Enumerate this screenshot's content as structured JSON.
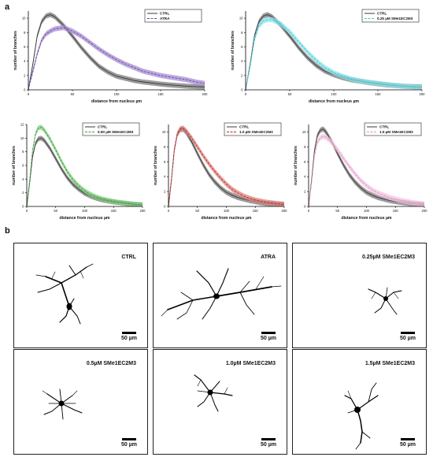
{
  "panel_a_label": "a",
  "panel_b_label": "b",
  "chart_data": [
    {
      "type": "line",
      "xlabel": "distance from nucleus µm",
      "ylabel": "number of branches",
      "xlim": [
        0,
        200
      ],
      "ylim": [
        0,
        11
      ],
      "xticks": [
        0,
        50,
        100,
        150,
        200
      ],
      "yticks": [
        0,
        2,
        4,
        6,
        8,
        10
      ],
      "legend_position": "top-right",
      "x": [
        0,
        5,
        10,
        15,
        20,
        25,
        30,
        40,
        50,
        60,
        70,
        80,
        90,
        100,
        110,
        120,
        130,
        140,
        150,
        160,
        170,
        180,
        190,
        200
      ],
      "series": [
        {
          "name": "CTRL",
          "color": "#3a3a3a",
          "band": "#7a7a7a",
          "values": [
            0,
            3.5,
            7.5,
            9.5,
            10.3,
            10.5,
            10.2,
            9.0,
            7.5,
            5.9,
            4.5,
            3.3,
            2.5,
            1.9,
            1.6,
            1.3,
            1.1,
            0.95,
            0.8,
            0.7,
            0.6,
            0.5,
            0.45,
            0.4
          ]
        },
        {
          "name": "ATRA",
          "color": "#6a4c93",
          "band": "#a58bd6",
          "values": [
            0,
            2.5,
            5.0,
            6.9,
            7.8,
            8.2,
            8.5,
            8.7,
            8.2,
            7.5,
            6.6,
            5.7,
            4.9,
            4.2,
            3.6,
            3.1,
            2.6,
            2.3,
            2.0,
            1.8,
            1.6,
            1.4,
            1.1,
            0.9
          ]
        }
      ]
    },
    {
      "type": "line",
      "xlabel": "distance from nucleus µm",
      "ylabel": "number of branches",
      "xlim": [
        0,
        200
      ],
      "ylim": [
        0,
        11
      ],
      "xticks": [
        0,
        50,
        100,
        150,
        200
      ],
      "yticks": [
        0,
        2,
        4,
        6,
        8,
        10
      ],
      "legend_position": "top-right",
      "x": [
        0,
        5,
        10,
        15,
        20,
        25,
        30,
        40,
        50,
        60,
        70,
        80,
        90,
        100,
        110,
        120,
        130,
        140,
        150,
        160,
        170,
        180,
        190,
        200
      ],
      "series": [
        {
          "name": "CTRL",
          "color": "#3a3a3a",
          "band": "#7a7a7a",
          "values": [
            0,
            3.5,
            7.5,
            9.5,
            10.3,
            10.5,
            10.2,
            9.0,
            7.5,
            5.9,
            4.5,
            3.4,
            2.6,
            2.1,
            1.7,
            1.4,
            1.2,
            1.0,
            0.85,
            0.7,
            0.6,
            0.5,
            0.45,
            0.4
          ]
        },
        {
          "name": "0.25 µM SMe1EC2M3",
          "color": "#39c6cf",
          "band": "#8ee6ec",
          "values": [
            0,
            3.2,
            7.0,
            8.9,
            9.6,
            9.8,
            9.8,
            9.2,
            8.1,
            6.7,
            5.3,
            4.1,
            3.1,
            2.4,
            1.9,
            1.5,
            1.25,
            1.05,
            0.9,
            0.75,
            0.6,
            0.5,
            0.4,
            0.35
          ]
        }
      ]
    },
    {
      "type": "line",
      "xlabel": "distance from nucleus µm",
      "ylabel": "number of branches",
      "xlim": [
        0,
        200
      ],
      "ylim": [
        0,
        12
      ],
      "xticks": [
        0,
        50,
        100,
        150,
        200
      ],
      "yticks": [
        0,
        2,
        4,
        6,
        8,
        10,
        12
      ],
      "legend_position": "top-right",
      "x": [
        0,
        5,
        10,
        15,
        20,
        25,
        30,
        40,
        50,
        60,
        70,
        80,
        90,
        100,
        110,
        120,
        130,
        140,
        150,
        160,
        170,
        180,
        190,
        200
      ],
      "series": [
        {
          "name": "CTRL",
          "color": "#3a3a3a",
          "band": "#7a7a7a",
          "values": [
            0,
            3.5,
            7.3,
            9.2,
            9.9,
            10.0,
            9.7,
            8.5,
            7.0,
            5.5,
            4.2,
            3.2,
            2.5,
            1.9,
            1.5,
            1.2,
            0.95,
            0.8,
            0.65,
            0.55,
            0.45,
            0.35,
            0.3,
            0.25
          ]
        },
        {
          "name": "0.50 µM SMe1EC2M3",
          "color": "#3e9b3e",
          "band": "#7dd07d",
          "values": [
            0,
            3.8,
            8.2,
            10.6,
            11.5,
            11.6,
            11.2,
            9.9,
            8.3,
            6.6,
            5.1,
            3.9,
            3.0,
            2.3,
            1.8,
            1.4,
            1.1,
            0.9,
            0.75,
            0.6,
            0.5,
            0.4,
            0.3,
            0.25
          ]
        }
      ]
    },
    {
      "type": "line",
      "xlabel": "distance from nucleus µm",
      "ylabel": "number of branches",
      "xlim": [
        0,
        200
      ],
      "ylim": [
        0,
        11
      ],
      "xticks": [
        0,
        50,
        100,
        150,
        200
      ],
      "yticks": [
        0,
        2,
        4,
        6,
        8,
        10
      ],
      "legend_position": "top-right",
      "x": [
        0,
        5,
        10,
        15,
        20,
        25,
        30,
        40,
        50,
        60,
        70,
        80,
        90,
        100,
        110,
        120,
        130,
        140,
        150,
        160,
        170,
        180,
        190,
        200
      ],
      "series": [
        {
          "name": "CTRL",
          "color": "#3a3a3a",
          "band": "#7a7a7a",
          "values": [
            0,
            3.5,
            7.5,
            9.6,
            10.3,
            10.4,
            10.0,
            8.7,
            7.1,
            5.6,
            4.3,
            3.3,
            2.5,
            1.9,
            1.5,
            1.2,
            1.0,
            0.8,
            0.65,
            0.5,
            0.4,
            0.35,
            0.3,
            0.25
          ]
        },
        {
          "name": "1.0 µM SMe1EC2M3",
          "color": "#b0302c",
          "band": "#e0837f",
          "values": [
            0,
            3.5,
            7.6,
            9.7,
            10.4,
            10.5,
            10.2,
            9.2,
            8.0,
            6.8,
            5.7,
            4.7,
            3.8,
            3.0,
            2.3,
            1.8,
            1.4,
            1.1,
            0.85,
            0.7,
            0.55,
            0.45,
            0.35,
            0.3
          ]
        }
      ]
    },
    {
      "type": "line",
      "xlabel": "distance from nucleus µm",
      "ylabel": "number of branches",
      "xlim": [
        0,
        200
      ],
      "ylim": [
        0,
        11
      ],
      "xticks": [
        0,
        50,
        100,
        150,
        200
      ],
      "yticks": [
        0,
        2,
        4,
        6,
        8,
        10
      ],
      "legend_position": "top-right",
      "x": [
        0,
        5,
        10,
        15,
        20,
        25,
        30,
        40,
        50,
        60,
        70,
        80,
        90,
        100,
        110,
        120,
        130,
        140,
        150,
        160,
        170,
        180,
        190,
        200
      ],
      "series": [
        {
          "name": "CTRL",
          "color": "#3a3a3a",
          "band": "#7a7a7a",
          "values": [
            0,
            3.4,
            7.4,
            9.5,
            10.2,
            10.4,
            10.0,
            8.7,
            7.1,
            5.6,
            4.3,
            3.3,
            2.5,
            1.9,
            1.5,
            1.2,
            1.0,
            0.8,
            0.65,
            0.55,
            0.45,
            0.35,
            0.3,
            0.25
          ]
        },
        {
          "name": "1.5 µM SMe1EC2M3",
          "color": "#e090c2",
          "band": "#f4c4e0",
          "values": [
            0,
            3.0,
            6.8,
            8.6,
            9.2,
            9.4,
            9.3,
            8.6,
            7.6,
            6.5,
            5.4,
            4.4,
            3.5,
            2.8,
            2.2,
            1.8,
            1.5,
            1.2,
            1.0,
            0.8,
            0.65,
            0.5,
            0.4,
            0.3
          ]
        }
      ]
    }
  ],
  "micrographs": [
    {
      "label": "CTRL",
      "scale": "50 µm"
    },
    {
      "label": "ATRA",
      "scale": "50 µm"
    },
    {
      "label": "0.25µM SMe1EC2M3",
      "scale": "50 µm"
    },
    {
      "label": "0.5µM SMe1EC2M3",
      "scale": "50 µm"
    },
    {
      "label": "1.0µM SMe1EC2M3",
      "scale": "50 µm"
    },
    {
      "label": "1.5µM SMe1EC2M3",
      "scale": "50 µm"
    }
  ]
}
